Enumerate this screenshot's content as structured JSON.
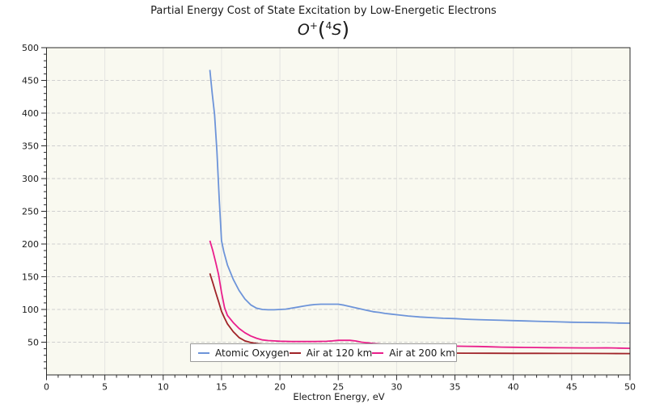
{
  "chart_data": {
    "type": "line",
    "title": "Partial Energy Cost of State Excitation by Low-Energetic Electrons",
    "subtitle": "O⁺(⁴S)",
    "subtitle_parts": {
      "base1": "O",
      "sup1": "+",
      "open": "(",
      "sup2": "4",
      "base2": "S",
      "close": ")"
    },
    "xlabel": "Electron Energy, eV",
    "ylabel": "",
    "xlim": [
      0,
      50
    ],
    "ylim": [
      0,
      500
    ],
    "xticks": [
      0,
      5,
      10,
      15,
      20,
      25,
      30,
      35,
      40,
      45,
      50
    ],
    "yticks": [
      50,
      100,
      150,
      200,
      250,
      300,
      350,
      400,
      450,
      500
    ],
    "x_minor_step": 1,
    "y_minor_step": 10,
    "grid": {
      "horizontal": "dashed",
      "vertical": "solid"
    },
    "legend_position": "bottom-center-inside",
    "plot_bg_color": "#f9f9f0",
    "grid_h_color": "#cfcfcf",
    "grid_v_color": "#e4e4e1",
    "axis_color": "#2a2a2a",
    "series": [
      {
        "name": "Atomic Oxygen",
        "color": "#6d94d9",
        "points": [
          [
            14,
            466
          ],
          [
            14.2,
            430
          ],
          [
            14.4,
            398
          ],
          [
            14.6,
            342
          ],
          [
            14.8,
            268
          ],
          [
            15,
            205
          ],
          [
            15.2,
            188
          ],
          [
            15.5,
            168
          ],
          [
            16,
            146
          ],
          [
            16.5,
            129
          ],
          [
            17,
            116
          ],
          [
            17.5,
            107
          ],
          [
            18,
            102
          ],
          [
            18.5,
            100
          ],
          [
            19,
            99.5
          ],
          [
            19.5,
            99.5
          ],
          [
            20,
            100
          ],
          [
            20.5,
            100.5
          ],
          [
            21,
            102
          ],
          [
            21.5,
            103.5
          ],
          [
            22,
            105
          ],
          [
            22.5,
            106.5
          ],
          [
            23,
            107.5
          ],
          [
            23.5,
            108
          ],
          [
            24,
            108
          ],
          [
            24.5,
            108
          ],
          [
            25,
            108
          ],
          [
            25.5,
            106.5
          ],
          [
            26,
            104.5
          ],
          [
            26.5,
            102.5
          ],
          [
            27,
            100.5
          ],
          [
            27.5,
            98.5
          ],
          [
            28,
            96.5
          ],
          [
            28.5,
            95.5
          ],
          [
            29,
            94
          ],
          [
            29.5,
            93
          ],
          [
            30,
            92
          ],
          [
            31,
            90
          ],
          [
            32,
            88.5
          ],
          [
            33,
            87.5
          ],
          [
            34,
            86.5
          ],
          [
            35,
            86
          ],
          [
            36,
            85
          ],
          [
            37,
            84.5
          ],
          [
            38,
            84
          ],
          [
            39,
            83.5
          ],
          [
            40,
            83
          ],
          [
            41,
            82.5
          ],
          [
            42,
            82
          ],
          [
            43,
            81.5
          ],
          [
            44,
            81
          ],
          [
            45,
            80.5
          ],
          [
            46,
            80.3
          ],
          [
            47,
            80
          ],
          [
            48,
            79.8
          ],
          [
            49,
            79.3
          ],
          [
            50,
            79
          ]
        ]
      },
      {
        "name": "Air at 120 km",
        "color": "#a02328",
        "points": [
          [
            14,
            155
          ],
          [
            14.25,
            141
          ],
          [
            14.5,
            126
          ],
          [
            14.75,
            112
          ],
          [
            15,
            97
          ],
          [
            15.25,
            87
          ],
          [
            15.5,
            78
          ],
          [
            16,
            66
          ],
          [
            16.5,
            57
          ],
          [
            17,
            52
          ],
          [
            17.5,
            49.5
          ],
          [
            18,
            48
          ],
          [
            18.5,
            47
          ],
          [
            19,
            45
          ],
          [
            19.5,
            43.5
          ],
          [
            20,
            42
          ],
          [
            21,
            39.5
          ],
          [
            22,
            38
          ],
          [
            23,
            37
          ],
          [
            24,
            36
          ],
          [
            25,
            35.5
          ],
          [
            26,
            35
          ],
          [
            27,
            34.6
          ],
          [
            28,
            34.3
          ],
          [
            29,
            34
          ],
          [
            30,
            33.8
          ],
          [
            32,
            33.5
          ],
          [
            34,
            33.3
          ],
          [
            36,
            33.2
          ],
          [
            38,
            33.1
          ],
          [
            40,
            33
          ],
          [
            42,
            33
          ],
          [
            44,
            32.9
          ],
          [
            46,
            32.8
          ],
          [
            48,
            32.7
          ],
          [
            50,
            32.6
          ]
        ]
      },
      {
        "name": "Air at 200 km",
        "color": "#ea1e8c",
        "points": [
          [
            14,
            205
          ],
          [
            14.25,
            190
          ],
          [
            14.5,
            172
          ],
          [
            14.75,
            153
          ],
          [
            15,
            126
          ],
          [
            15.25,
            103
          ],
          [
            15.5,
            91
          ],
          [
            16,
            80
          ],
          [
            16.5,
            71
          ],
          [
            17,
            64.5
          ],
          [
            17.5,
            59.5
          ],
          [
            18,
            56
          ],
          [
            18.5,
            53.5
          ],
          [
            19,
            52.5
          ],
          [
            19.5,
            52
          ],
          [
            20,
            51.5
          ],
          [
            21,
            51
          ],
          [
            22,
            51
          ],
          [
            23,
            51
          ],
          [
            24,
            51.3
          ],
          [
            24.5,
            52
          ],
          [
            25,
            52.8
          ],
          [
            25.5,
            53
          ],
          [
            26,
            52.8
          ],
          [
            26.5,
            51.8
          ],
          [
            27,
            50
          ],
          [
            28,
            48
          ],
          [
            29,
            46.5
          ],
          [
            30,
            45.5
          ],
          [
            31,
            45
          ],
          [
            32,
            44.5
          ],
          [
            33,
            44.2
          ],
          [
            34,
            44
          ],
          [
            35,
            44
          ],
          [
            36,
            43.7
          ],
          [
            37,
            43.4
          ],
          [
            38,
            43
          ],
          [
            39,
            42.5
          ],
          [
            40,
            42.2
          ],
          [
            41,
            42
          ],
          [
            42,
            41.8
          ],
          [
            43,
            41.6
          ],
          [
            44,
            41.5
          ],
          [
            45,
            41.3
          ],
          [
            46,
            41.2
          ],
          [
            47,
            41.2
          ],
          [
            48,
            41.3
          ],
          [
            49,
            41
          ],
          [
            50,
            40.6
          ]
        ]
      }
    ]
  }
}
